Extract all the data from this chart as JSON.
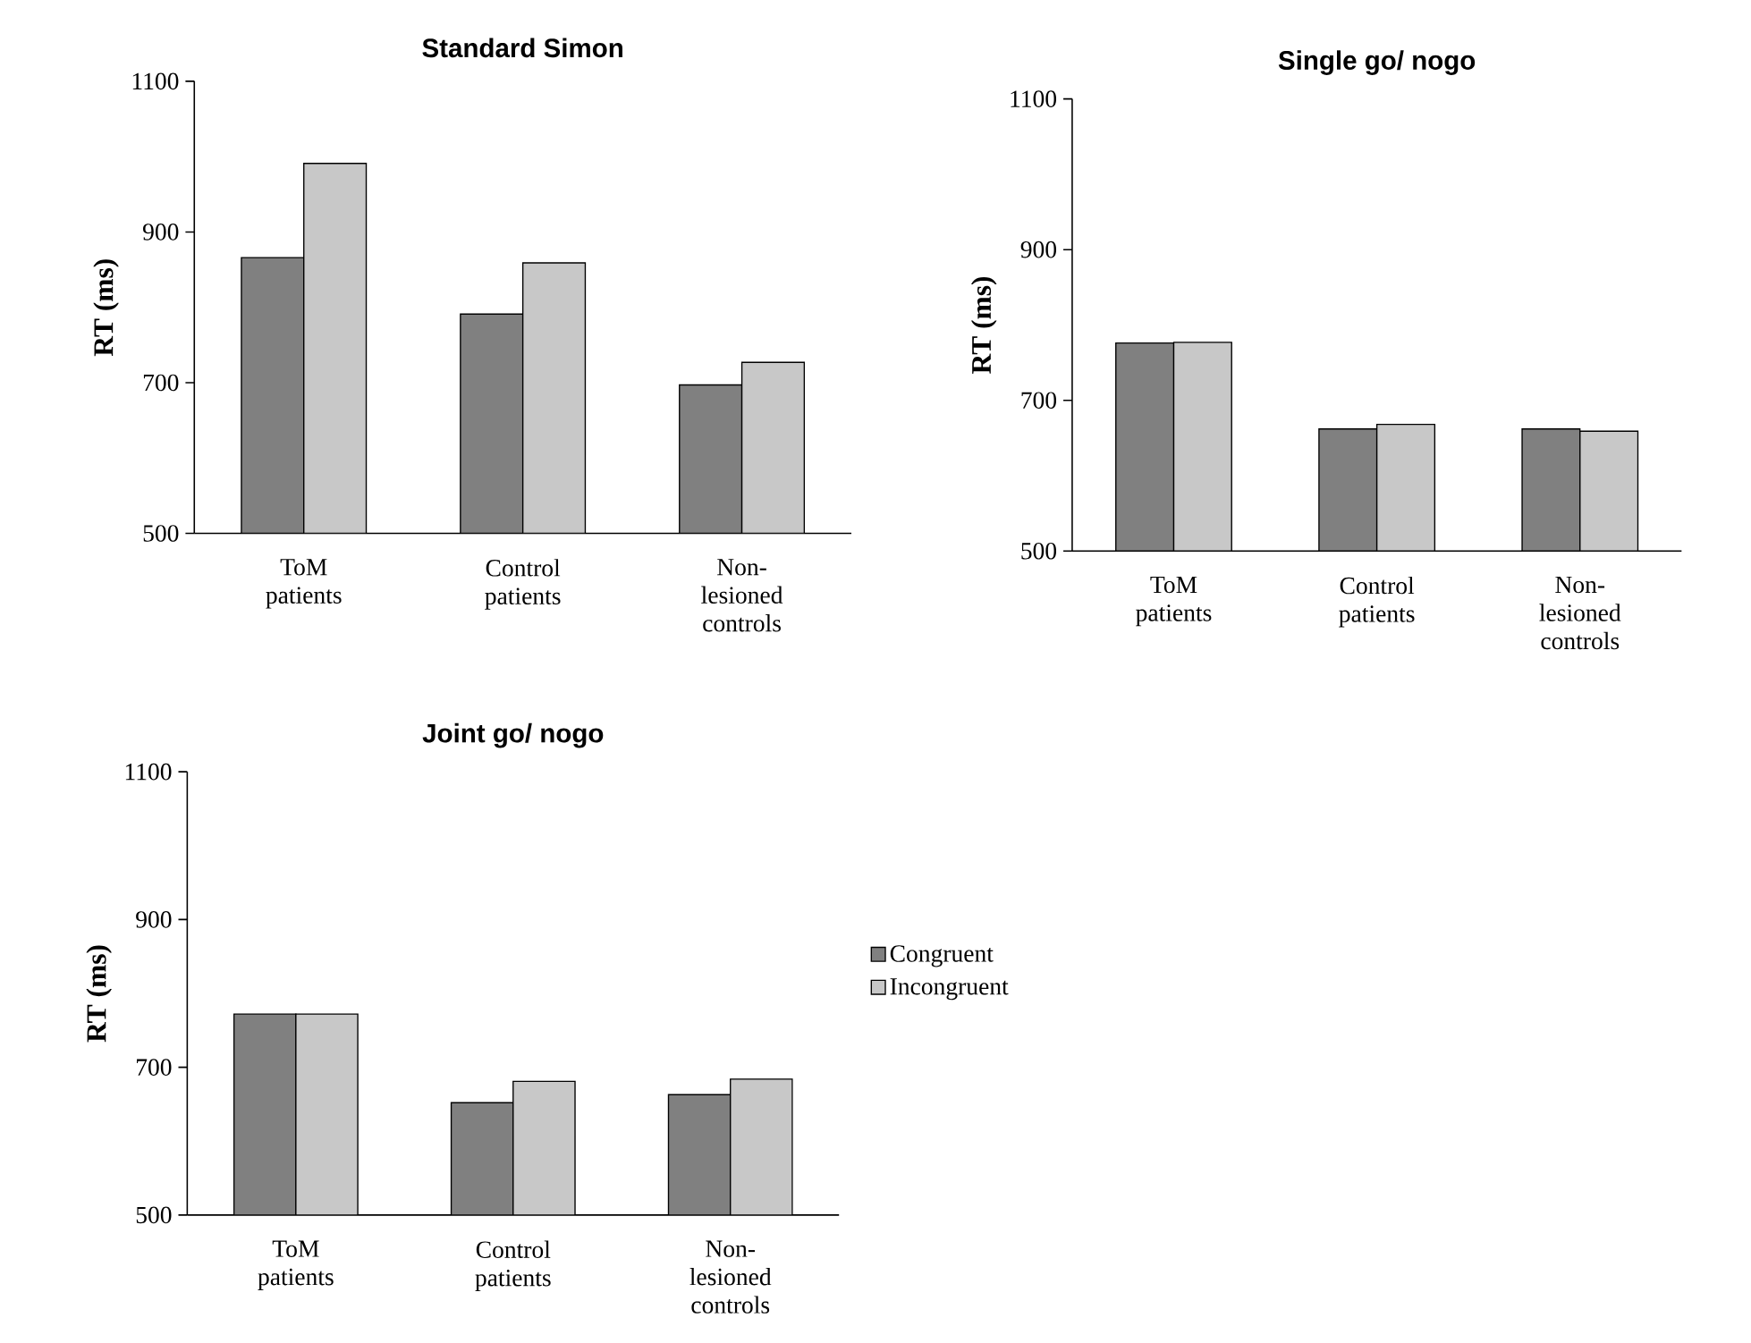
{
  "chart_data": [
    {
      "type": "bar",
      "title": "Standard Simon",
      "ylabel": "RT (ms)",
      "categories": [
        "ToM patients",
        "Control patients",
        "Non-lesioned controls"
      ],
      "ylim": [
        500,
        1100
      ],
      "yticks": [
        500,
        700,
        900,
        1100
      ],
      "legend": false,
      "series": [
        {
          "color": "#808080",
          "values": [
            866,
            791,
            697
          ]
        },
        {
          "color": "#c8c8c8",
          "values": [
            991,
            859,
            727
          ]
        }
      ]
    },
    {
      "type": "bar",
      "title": "Single go/ nogo",
      "ylabel": "RT (ms)",
      "categories": [
        "ToM patients",
        "Control patients",
        "Non-lesioned controls"
      ],
      "ylim": [
        500,
        1100
      ],
      "yticks": [
        500,
        700,
        900,
        1100
      ],
      "legend": false,
      "series": [
        {
          "color": "#808080",
          "values": [
            776,
            662,
            662
          ]
        },
        {
          "color": "#c8c8c8",
          "values": [
            777,
            668,
            659
          ]
        }
      ]
    },
    {
      "type": "bar",
      "title": "Joint go/ nogo",
      "ylabel": "RT (ms)",
      "categories": [
        "ToM patients",
        "Control patients",
        "Non-lesioned controls"
      ],
      "ylim": [
        500,
        1100
      ],
      "yticks": [
        500,
        700,
        900,
        1100
      ],
      "legend": "right",
      "series": [
        {
          "name": "Congruent",
          "color": "#808080",
          "values": [
            772,
            652,
            663
          ]
        },
        {
          "name": "Incongruent",
          "color": "#c8c8c8",
          "values": [
            772,
            681,
            684
          ]
        }
      ]
    }
  ]
}
